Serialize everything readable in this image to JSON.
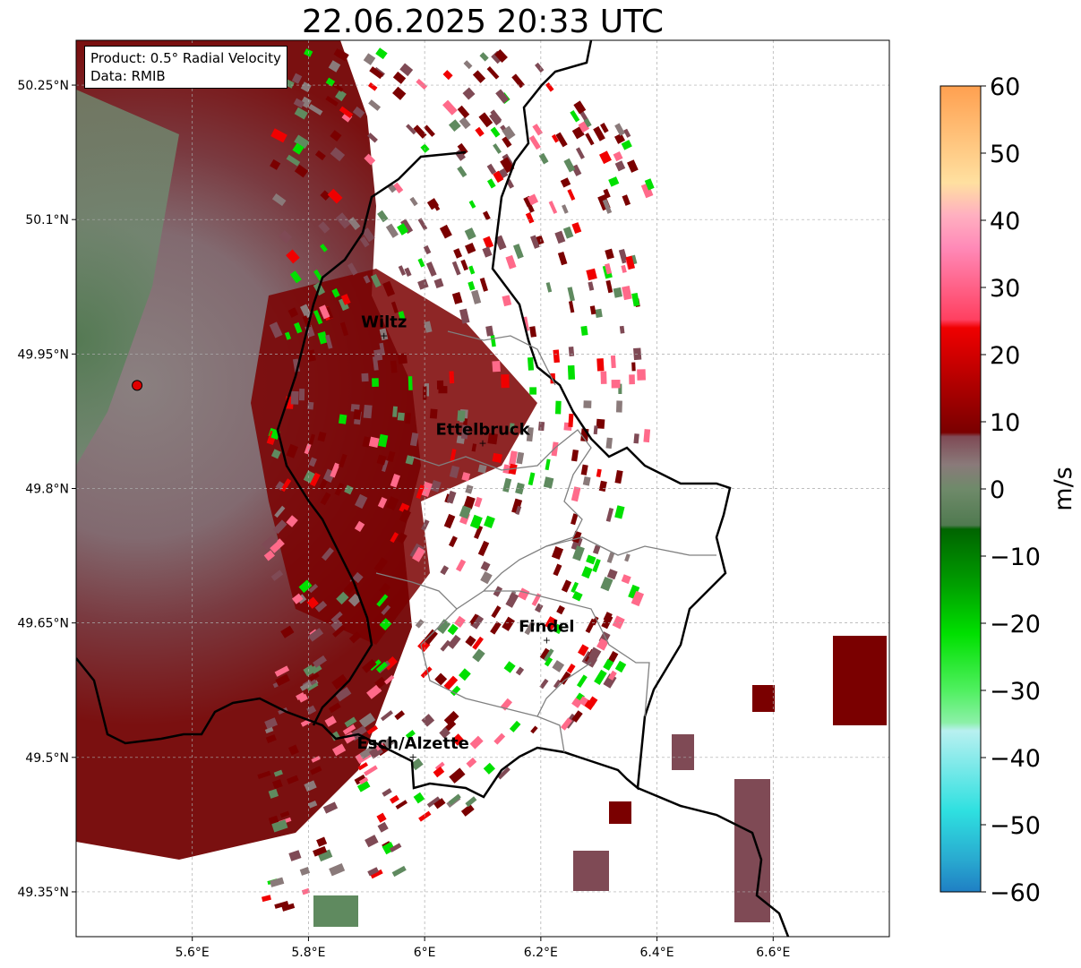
{
  "title": "22.06.2025 20:33 UTC",
  "info": {
    "product": "Product: 0.5° Radial Velocity",
    "data": "Data: RMIB"
  },
  "map": {
    "lon_range": [
      5.4,
      6.8
    ],
    "lat_range": [
      49.3,
      50.3
    ],
    "lat_ticks": [
      {
        "value": 50.25,
        "label": "50.25°N"
      },
      {
        "value": 50.1,
        "label": "50.1°N"
      },
      {
        "value": 49.95,
        "label": "49.95°N"
      },
      {
        "value": 49.8,
        "label": "49.8°N"
      },
      {
        "value": 49.65,
        "label": "49.65°N"
      },
      {
        "value": 49.5,
        "label": "49.5°N"
      },
      {
        "value": 49.35,
        "label": "49.35°N"
      }
    ],
    "lon_ticks": [
      {
        "value": 5.6,
        "label": "5.6°E"
      },
      {
        "value": 5.8,
        "label": "5.8°E"
      },
      {
        "value": 6.0,
        "label": "6°E"
      },
      {
        "value": 6.2,
        "label": "6.2°E"
      },
      {
        "value": 6.4,
        "label": "6.4°E"
      },
      {
        "value": 6.6,
        "label": "6.6°E"
      }
    ],
    "grid": true,
    "radar_site": {
      "lon": 5.505,
      "lat": 49.915,
      "color": "#e00000"
    },
    "cities": [
      {
        "name": "Wiltz",
        "lon": 5.93,
        "lat": 49.97
      },
      {
        "name": "Ettelbruck",
        "lon": 6.1,
        "lat": 49.85
      },
      {
        "name": "Findel",
        "lon": 6.21,
        "lat": 49.63
      },
      {
        "name": "Esch/Alzette",
        "lon": 5.98,
        "lat": 49.5
      }
    ]
  },
  "colorbar": {
    "min": -60,
    "max": 60,
    "unit": "m/s",
    "ticks": [
      {
        "value": 60,
        "label": "60"
      },
      {
        "value": 50,
        "label": "50"
      },
      {
        "value": 40,
        "label": "40"
      },
      {
        "value": 30,
        "label": "30"
      },
      {
        "value": 20,
        "label": "20"
      },
      {
        "value": 10,
        "label": "10"
      },
      {
        "value": 0,
        "label": "0"
      },
      {
        "value": -10,
        "label": "−10"
      },
      {
        "value": -20,
        "label": "−20"
      },
      {
        "value": -30,
        "label": "−30"
      },
      {
        "value": -40,
        "label": "−40"
      },
      {
        "value": -50,
        "label": "−50"
      },
      {
        "value": -60,
        "label": "−60"
      }
    ],
    "colors": {
      "blue": "#1f7fc4",
      "cyan": "#2ee0e0",
      "light_cyan": "#b8f0f0",
      "light_green": "#8cf0a8",
      "green": "#00e000",
      "dark_green": "#006400",
      "gray_green": "#5f8a5f",
      "gray": "#8a7a7a",
      "mauve": "#7f4a55",
      "dark_red": "#7a0000",
      "red": "#f00000",
      "pink": "#ff6a8a",
      "light_pink": "#ffb0c0",
      "light_orange": "#ffe0a0",
      "orange": "#ffa050"
    }
  }
}
